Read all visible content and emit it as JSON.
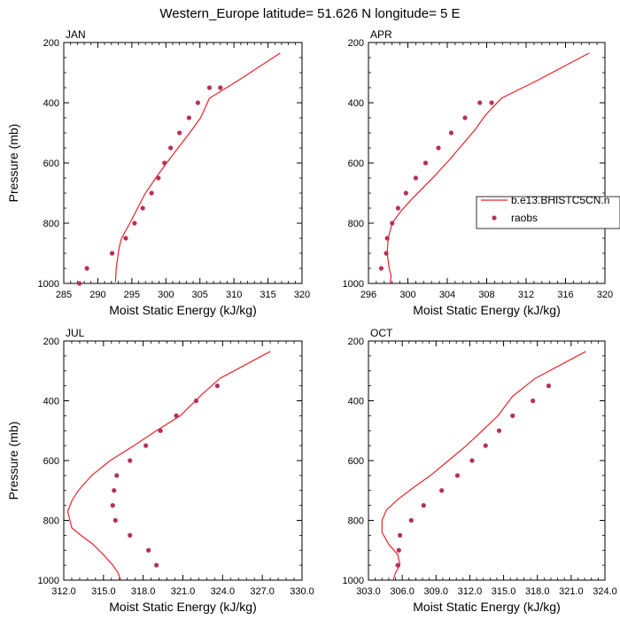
{
  "figure": {
    "title": "Western_Europe  latitude= 51.626 N longitude= 5 E"
  },
  "legend": {
    "model_label": "b.e13.BHISTC5CN.n",
    "obs_label": "raobs",
    "model_color": "#e8232a",
    "obs_color": "#b8305a"
  },
  "chart_data": [
    {
      "type": "line",
      "panel": "JAN",
      "title": "JAN",
      "xlabel": "Moist Static Energy (kJ/kg)",
      "ylabel": "Pressure (mb)",
      "xlim": [
        285,
        320
      ],
      "ylim": [
        1000,
        200
      ],
      "xticks": [
        285,
        290,
        295,
        300,
        305,
        310,
        315,
        320
      ],
      "xtick_labels": [
        "285",
        "290",
        "295",
        "300",
        "305",
        "310",
        "315",
        "320"
      ],
      "yticks": [
        200,
        400,
        600,
        800,
        1000
      ],
      "ytick_labels": [
        "200",
        "400",
        "600",
        "800",
        "1000"
      ],
      "series": [
        {
          "name": "b.e13.BHISTC5CN.n",
          "kind": "line",
          "x": [
            292.6,
            292.7,
            293.0,
            293.2,
            293.5,
            294.1,
            294.7,
            295.5,
            297.0,
            298.5,
            300.1,
            301.8,
            303.5,
            305.1,
            306.4,
            310.7,
            316.8
          ],
          "y": [
            995,
            950,
            900,
            875,
            850,
            825,
            800,
            765,
            700,
            650,
            600,
            550,
            500,
            450,
            385,
            325,
            235
          ]
        },
        {
          "name": "raobs",
          "kind": "scatter",
          "x": [
            287.3,
            288.4,
            292.1,
            294.1,
            295.4,
            296.6,
            297.9,
            298.9,
            299.8,
            300.7,
            302.0,
            303.4,
            304.7,
            306.4,
            308.0
          ],
          "y": [
            1000,
            950,
            900,
            850,
            800,
            750,
            700,
            650,
            600,
            550,
            500,
            450,
            400,
            350,
            350
          ]
        }
      ]
    },
    {
      "type": "line",
      "panel": "APR",
      "title": "APR",
      "xlabel": "Moist Static Energy (kJ/kg)",
      "ylabel": "",
      "xlim": [
        296,
        320
      ],
      "ylim": [
        1000,
        200
      ],
      "xticks": [
        296,
        300,
        304,
        308,
        312,
        316,
        320
      ],
      "xtick_labels": [
        "296",
        "300",
        "304",
        "308",
        "312",
        "316",
        "320"
      ],
      "yticks": [
        200,
        400,
        600,
        800,
        1000
      ],
      "ytick_labels": [
        "200",
        "400",
        "600",
        "800",
        "1000"
      ],
      "series": [
        {
          "name": "b.e13.BHISTC5CN.n",
          "kind": "line",
          "x": [
            298.2,
            298.3,
            298.1,
            297.9,
            298.0,
            298.4,
            299.3,
            300.4,
            301.6,
            302.8,
            304.2,
            305.5,
            306.8,
            307.9,
            309.5,
            313.2,
            318.4
          ],
          "y": [
            1000,
            975,
            950,
            900,
            850,
            800,
            760,
            720,
            680,
            640,
            590,
            540,
            490,
            440,
            385,
            325,
            235
          ]
        },
        {
          "name": "raobs",
          "kind": "scatter",
          "x": [
            297.3,
            297.8,
            297.9,
            298.4,
            299.0,
            299.8,
            300.8,
            301.8,
            303.1,
            304.4,
            305.8,
            307.3,
            308.5
          ],
          "y": [
            950,
            900,
            850,
            800,
            750,
            700,
            650,
            600,
            550,
            500,
            450,
            400,
            400
          ]
        }
      ]
    },
    {
      "type": "line",
      "panel": "JUL",
      "title": "JUL",
      "xlabel": "Moist Static Energy (kJ/kg)",
      "ylabel": "Pressure (mb)",
      "xlim": [
        312,
        330
      ],
      "ylim": [
        1000,
        200
      ],
      "xticks": [
        312,
        315,
        318,
        321,
        324,
        327,
        330
      ],
      "xtick_labels": [
        "312.0",
        "315.0",
        "318.0",
        "321.0",
        "324.0",
        "327.0",
        "330.0"
      ],
      "yticks": [
        200,
        400,
        600,
        800,
        1000
      ],
      "ytick_labels": [
        "200",
        "400",
        "600",
        "800",
        "1000"
      ],
      "series": [
        {
          "name": "b.e13.BHISTC5CN.n",
          "kind": "line",
          "x": [
            316.3,
            316.1,
            315.7,
            315.0,
            314.2,
            313.3,
            312.6,
            312.3,
            312.6,
            313.1,
            314.1,
            315.5,
            317.3,
            319.0,
            320.8,
            322.4,
            323.8,
            327.6
          ],
          "y": [
            1000,
            975,
            950,
            915,
            880,
            850,
            825,
            770,
            735,
            700,
            650,
            600,
            550,
            500,
            450,
            380,
            325,
            235
          ]
        },
        {
          "name": "raobs",
          "kind": "scatter",
          "x": [
            319.0,
            318.4,
            317.0,
            315.9,
            315.7,
            315.8,
            316.0,
            317.0,
            318.2,
            319.3,
            320.5,
            322.0,
            323.6
          ],
          "y": [
            950,
            900,
            850,
            800,
            750,
            700,
            650,
            600,
            550,
            500,
            450,
            400,
            350
          ]
        }
      ]
    },
    {
      "type": "line",
      "panel": "OCT",
      "title": "OCT",
      "xlabel": "Moist Static Energy (kJ/kg)",
      "ylabel": "",
      "xlim": [
        303,
        324
      ],
      "ylim": [
        1000,
        200
      ],
      "xticks": [
        303,
        306,
        309,
        312,
        315,
        318,
        321,
        324
      ],
      "xtick_labels": [
        "303.0",
        "306.0",
        "309.0",
        "312.0",
        "315.0",
        "318.0",
        "321.0",
        "324.0"
      ],
      "yticks": [
        200,
        400,
        600,
        800,
        1000
      ],
      "ytick_labels": [
        "200",
        "400",
        "600",
        "800",
        "1000"
      ],
      "series": [
        {
          "name": "b.e13.BHISTC5CN.n",
          "kind": "line",
          "x": [
            305.2,
            305.4,
            305.8,
            305.6,
            304.8,
            304.2,
            304.2,
            304.6,
            305.6,
            307.0,
            308.5,
            310.1,
            311.7,
            313.1,
            314.5,
            315.8,
            317.8,
            322.3
          ],
          "y": [
            1000,
            975,
            950,
            915,
            880,
            840,
            800,
            765,
            730,
            690,
            650,
            600,
            550,
            500,
            450,
            385,
            325,
            235
          ]
        },
        {
          "name": "raobs",
          "kind": "scatter",
          "x": [
            305.6,
            305.7,
            305.8,
            306.8,
            307.9,
            309.5,
            310.9,
            312.2,
            313.4,
            314.6,
            315.8,
            317.6,
            319.0
          ],
          "y": [
            950,
            900,
            850,
            800,
            750,
            700,
            650,
            600,
            550,
            500,
            450,
            400,
            350
          ]
        }
      ]
    }
  ]
}
